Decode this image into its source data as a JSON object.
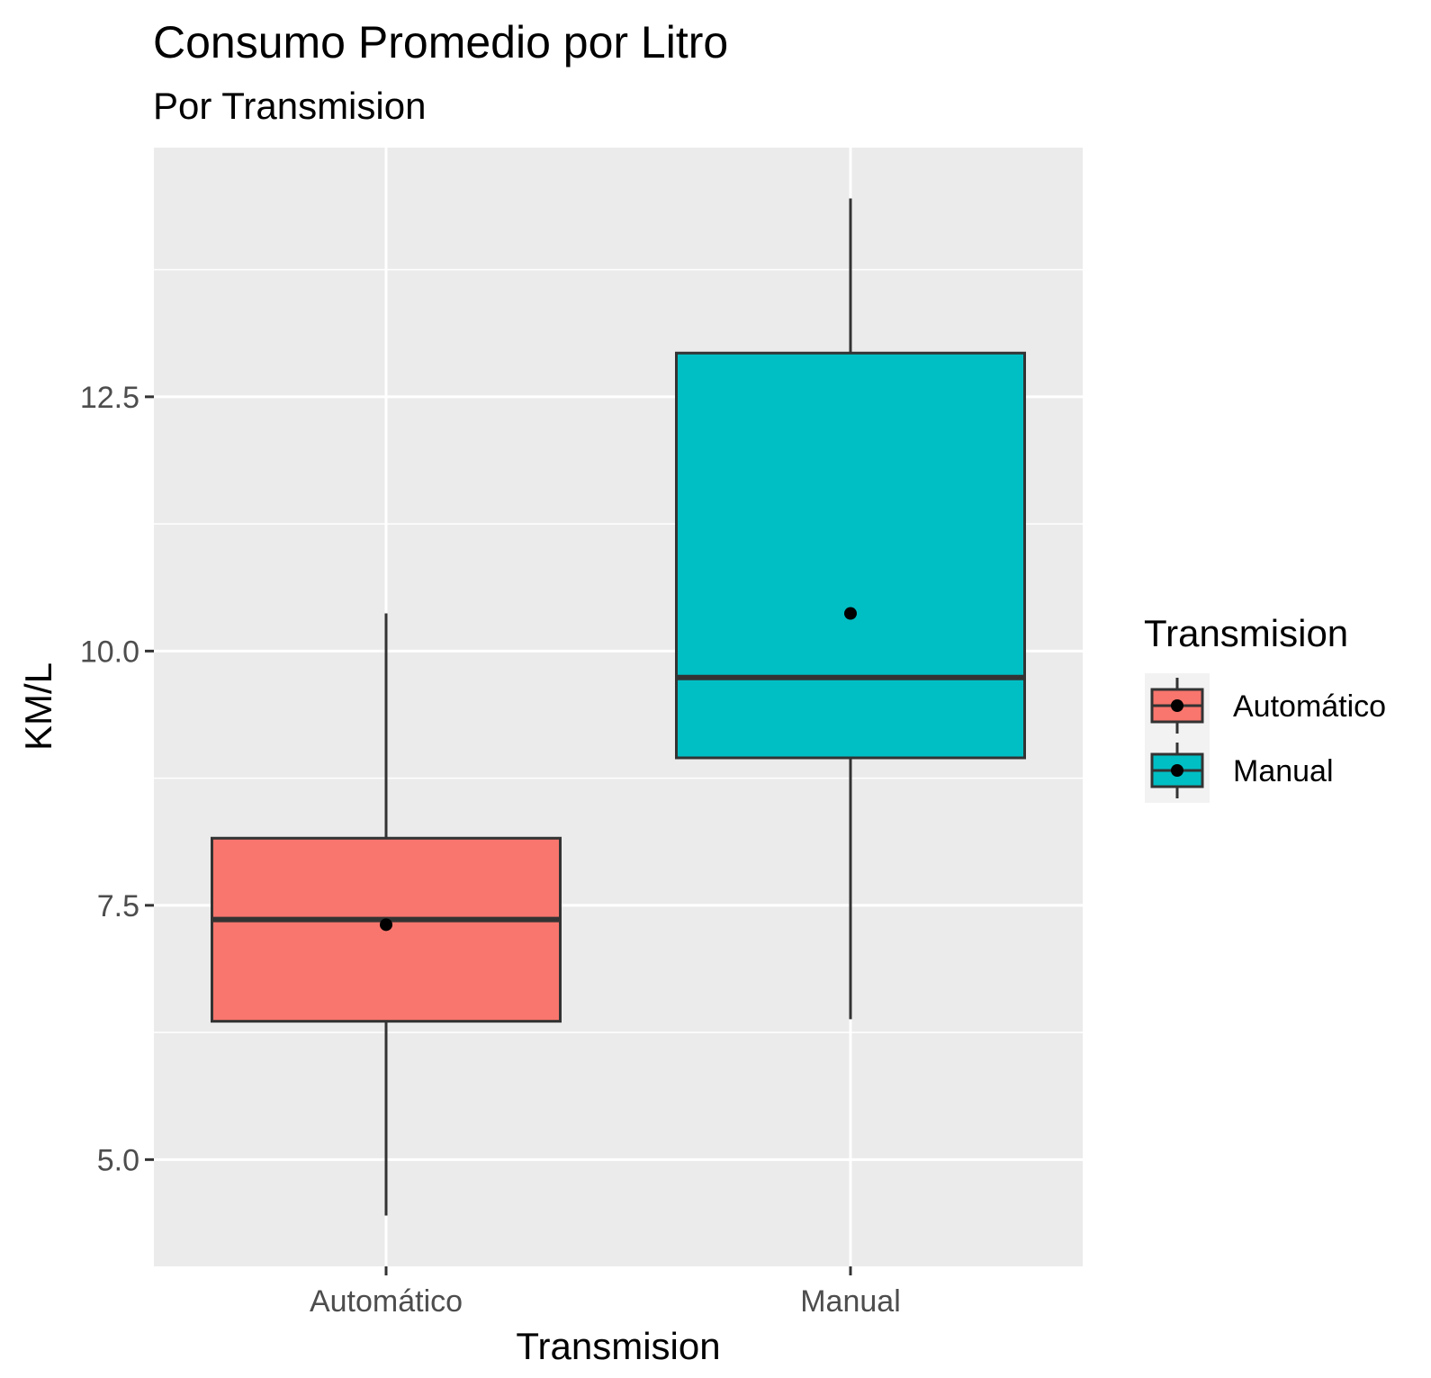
{
  "chart_data": {
    "type": "boxplot",
    "title": "Consumo Promedio por Litro",
    "subtitle": "Por Transmision",
    "xlabel": "Transmision",
    "ylabel": "KM/L",
    "ylim": [
      3.95,
      14.95
    ],
    "yticks": [
      {
        "value": 5.0,
        "label": "5.0"
      },
      {
        "value": 7.5,
        "label": "7.5"
      },
      {
        "value": 10.0,
        "label": "10.0"
      },
      {
        "value": 12.5,
        "label": "12.5"
      }
    ],
    "grid": true,
    "legend": {
      "title": "Transmision",
      "position": "right"
    },
    "categories": [
      "Automático",
      "Manual"
    ],
    "series": [
      {
        "name": "Automático",
        "color": "#f8766d",
        "min": 4.45,
        "q1": 6.36,
        "median": 7.36,
        "q3": 8.16,
        "max": 10.37,
        "mean": 7.31
      },
      {
        "name": "Manual",
        "color": "#00bfc4",
        "min": 6.38,
        "q1": 8.95,
        "median": 9.74,
        "q3": 12.93,
        "max": 14.45,
        "mean": 10.37
      }
    ]
  }
}
